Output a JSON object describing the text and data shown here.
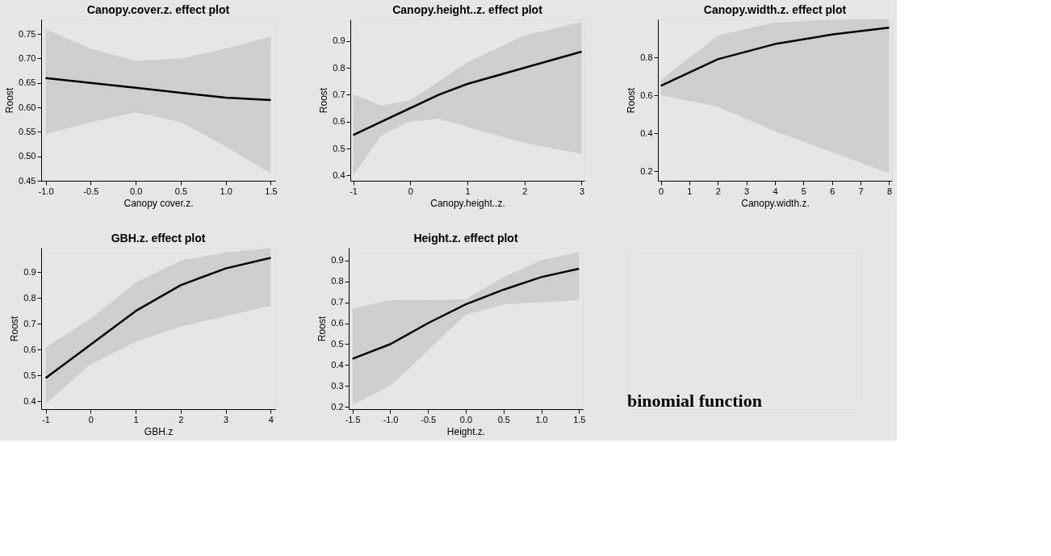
{
  "chart_data": [
    {
      "type": "line",
      "title": "Canopy.cover.z. effect plot",
      "xlabel": "Canopy cover.z.",
      "ylabel": "Roost",
      "x": [
        -1,
        -0.5,
        0,
        0.5,
        1,
        1.5
      ],
      "series": [
        {
          "color": "#000000",
          "values": [
            0.66,
            0.65,
            0.64,
            0.63,
            0.62,
            0.615
          ],
          "lower": [
            0.545,
            0.57,
            0.59,
            0.57,
            0.52,
            0.465
          ],
          "upper": [
            0.76,
            0.72,
            0.695,
            0.7,
            0.72,
            0.745
          ]
        }
      ],
      "xlim": [
        -1.05,
        1.55
      ],
      "xticks": [
        {
          "value": -1,
          "label": "-1.0"
        },
        -0.5,
        {
          "value": 0,
          "label": "0.0"
        },
        0.5,
        {
          "value": 1,
          "label": "1.0"
        },
        1.5
      ],
      "ylim": [
        0.45,
        0.78
      ],
      "yticks": [
        0.45,
        {
          "value": 0.5,
          "label": "0.50"
        },
        0.55,
        {
          "value": 0.6,
          "label": "0.60"
        },
        0.65,
        {
          "value": 0.7,
          "label": "0.70"
        },
        0.75
      ],
      "grid": false
    },
    {
      "type": "line",
      "title": "Canopy.height..z. effect plot",
      "xlabel": "Canopy.height..z.",
      "ylabel": "Roost",
      "x": [
        -1,
        -0.5,
        0,
        0.5,
        1,
        2,
        3
      ],
      "series": [
        {
          "color": "#000000",
          "values": [
            0.55,
            0.6,
            0.65,
            0.7,
            0.74,
            0.8,
            0.86
          ],
          "lower": [
            0.4,
            0.55,
            0.6,
            0.61,
            0.58,
            0.52,
            0.48
          ],
          "upper": [
            0.7,
            0.66,
            0.68,
            0.75,
            0.82,
            0.92,
            0.97
          ]
        }
      ],
      "xlim": [
        -1.05,
        3.05
      ],
      "xticks": [
        -1,
        0,
        1,
        2,
        3
      ],
      "ylim": [
        0.38,
        0.98
      ],
      "yticks": [
        0.4,
        0.5,
        0.6,
        0.7,
        0.8,
        0.9
      ],
      "grid": false
    },
    {
      "type": "line",
      "title": "Canopy.width.z. effect plot",
      "xlabel": "Canopy.width.z.",
      "ylabel": "Roost",
      "x": [
        0,
        2,
        4,
        6,
        8
      ],
      "series": [
        {
          "color": "#000000",
          "values": [
            0.65,
            0.79,
            0.87,
            0.92,
            0.956
          ],
          "lower": [
            0.6,
            0.54,
            0.41,
            0.3,
            0.19
          ],
          "upper": [
            0.68,
            0.915,
            0.984,
            0.997,
            0.9995
          ]
        }
      ],
      "xlim": [
        -0.1,
        8.1
      ],
      "xticks": [
        0,
        1,
        2,
        3,
        4,
        5,
        6,
        7,
        8
      ],
      "ylim": [
        0.15,
        1.0
      ],
      "yticks": [
        0.2,
        0.4,
        0.6,
        0.8
      ],
      "grid": false
    },
    {
      "type": "line",
      "title": "GBH.z. effect plot",
      "xlabel": "GBH.z",
      "ylabel": "Roost",
      "x": [
        -1,
        0,
        1,
        2,
        3,
        4
      ],
      "series": [
        {
          "color": "#000000",
          "values": [
            0.49,
            0.62,
            0.75,
            0.85,
            0.915,
            0.956
          ],
          "lower": [
            0.39,
            0.545,
            0.63,
            0.69,
            0.73,
            0.77
          ],
          "upper": [
            0.61,
            0.72,
            0.86,
            0.945,
            0.977,
            0.993
          ]
        }
      ],
      "xlim": [
        -1.1,
        4.1
      ],
      "xticks": [
        -1,
        0,
        1,
        2,
        3,
        4
      ],
      "ylim": [
        0.37,
        0.995
      ],
      "yticks": [
        0.4,
        0.5,
        0.6,
        0.7,
        0.8,
        0.9
      ],
      "grid": false
    },
    {
      "type": "line",
      "title": "Height.z. effect plot",
      "xlabel": "Height.z.",
      "ylabel": "Roost",
      "x": [
        -1.5,
        -1,
        -0.5,
        0,
        0.5,
        1,
        1.5
      ],
      "series": [
        {
          "color": "#000000",
          "values": [
            0.43,
            0.5,
            0.6,
            0.69,
            0.76,
            0.82,
            0.86
          ],
          "lower": [
            0.21,
            0.3,
            0.47,
            0.64,
            0.69,
            0.7,
            0.71
          ],
          "upper": [
            0.67,
            0.71,
            0.71,
            0.715,
            0.82,
            0.9,
            0.94
          ]
        }
      ],
      "xlim": [
        -1.55,
        1.55
      ],
      "xticks": [
        -1.5,
        {
          "value": -1,
          "label": "-1.0"
        },
        -0.5,
        {
          "value": 0,
          "label": "0.0"
        },
        0.5,
        {
          "value": 1,
          "label": "1.0"
        },
        1.5
      ],
      "ylim": [
        0.19,
        0.96
      ],
      "yticks": [
        0.2,
        0.3,
        0.4,
        0.5,
        0.6,
        0.7,
        0.8,
        0.9
      ],
      "grid": false,
      "annotations": [
        "binomial function"
      ]
    }
  ]
}
